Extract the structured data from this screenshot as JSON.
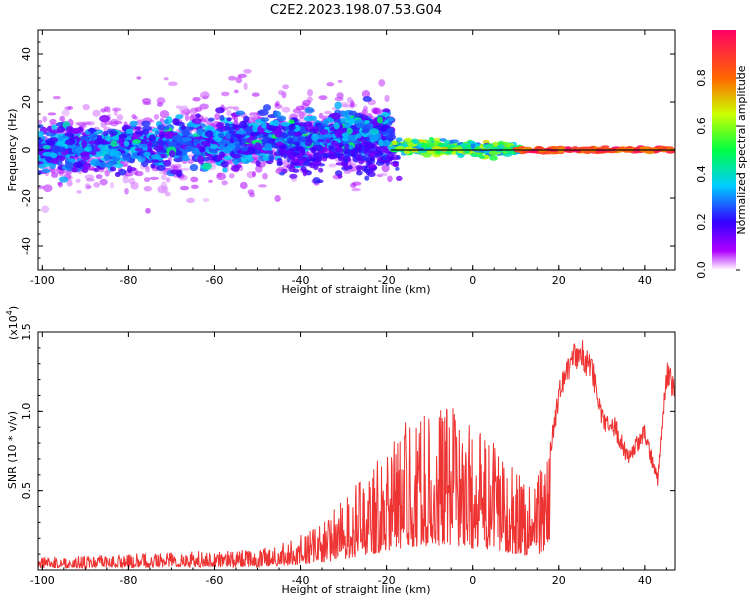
{
  "title": "C2E2.2023.198.07.53.G04",
  "colors": {
    "snr_line": "#ee3333",
    "baseline": "#111111",
    "background": "#ffffff"
  },
  "chart_data": [
    {
      "type": "heatmap",
      "xlabel": "Height of straight line (km)",
      "ylabel": "Frequency (Hz)",
      "xlim": [
        -101,
        47
      ],
      "ylim": [
        -50,
        50
      ],
      "x_ticks": [
        "-100",
        "-80",
        "-60",
        "-40",
        "-20",
        "0",
        "20",
        "40"
      ],
      "y_ticks": [
        "40",
        "20",
        "0",
        "-20",
        "-40"
      ],
      "colorbar": {
        "label": "Normalized spectral amplitude",
        "range": [
          0,
          1
        ],
        "ticks": [
          "0.0",
          "0.2",
          "0.4",
          "0.6",
          "0.8"
        ],
        "colormap": "rainbow (white-purple-blue-cyan-green-yellow-red)"
      },
      "description_segments": [
        {
          "x_range": [
            -101,
            -20
          ],
          "center_freq_hz_start": 0,
          "center_freq_hz_end": 8,
          "spread_hz": 10,
          "amplitude": "low (0.1-0.4)"
        },
        {
          "x_range": [
            -20,
            10
          ],
          "center_freq_hz": 1.5,
          "spread_hz": 2,
          "amplitude": "medium (0.4-0.7)"
        },
        {
          "x_range": [
            10,
            47
          ],
          "center_freq_hz": 0,
          "spread_hz": 1,
          "amplitude": "high (0.8-1.0)"
        }
      ]
    },
    {
      "type": "line",
      "xlabel": "Height of straight line (km)",
      "ylabel": "SNR (10 * v/v)",
      "y_scale_label": "(x10",
      "y_scale_exp": "4",
      "y_scale_close": ")",
      "xlim": [
        -101,
        47
      ],
      "ylim": [
        0,
        1.5
      ],
      "x_ticks": [
        "-100",
        "-80",
        "-60",
        "-40",
        "-20",
        "0",
        "20",
        "40"
      ],
      "y_ticks": [
        "0.5",
        "1.0",
        "1.5"
      ],
      "series": [
        {
          "envelope_points_x": [
            -101,
            -90,
            -80,
            -70,
            -60,
            -50,
            -45,
            -40,
            -35,
            -30,
            -25,
            -20,
            -15,
            -10,
            -5,
            0,
            3,
            6,
            9,
            12,
            15,
            18,
            20,
            22,
            25,
            28,
            30,
            33,
            36,
            40,
            43,
            45,
            47
          ],
          "envelope_points_y": [
            0.08,
            0.09,
            0.1,
            0.12,
            0.12,
            0.13,
            0.16,
            0.22,
            0.3,
            0.45,
            0.6,
            0.8,
            0.95,
            1.0,
            1.05,
            0.9,
            0.85,
            0.8,
            0.7,
            0.6,
            0.65,
            0.8,
            1.15,
            1.35,
            1.45,
            1.3,
            1.0,
            0.95,
            0.75,
            0.9,
            0.6,
            1.3,
            1.2
          ]
        }
      ]
    }
  ]
}
